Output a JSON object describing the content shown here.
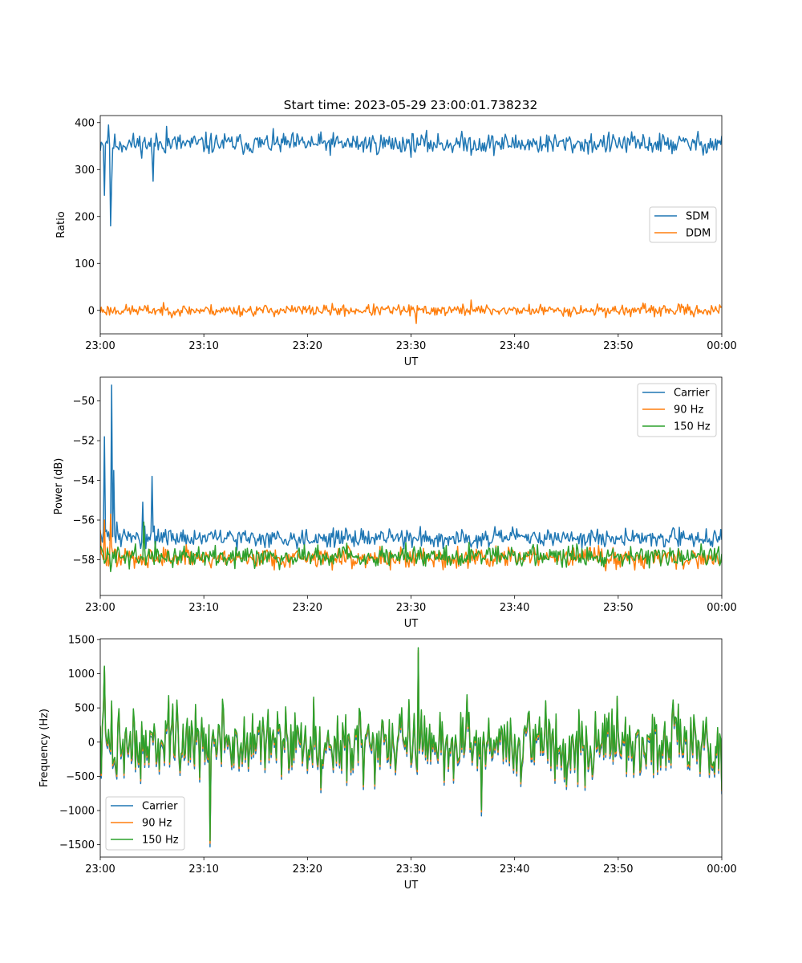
{
  "figure": {
    "title": "Start time: 2023-05-29 23:00:01.738232"
  },
  "colors": {
    "c0": "#1f77b4",
    "c1": "#ff7f0e",
    "c2": "#2ca02c"
  },
  "chart_data": [
    {
      "type": "line",
      "xlabel": "UT",
      "ylabel": "Ratio",
      "xlim": [
        0,
        60
      ],
      "ylim": [
        -50,
        415
      ],
      "xticks": [
        0,
        10,
        20,
        30,
        40,
        50,
        60
      ],
      "xticklabels": [
        "23:00",
        "23:10",
        "23:20",
        "23:30",
        "23:40",
        "23:50",
        "00:00"
      ],
      "yticks": [
        0,
        100,
        200,
        300,
        400
      ],
      "yticklabels": [
        "0",
        "100",
        "200",
        "300",
        "400"
      ],
      "legend_position": "center-right",
      "series": [
        {
          "name": "SDM",
          "color": "#1f77b4",
          "profile": {
            "base": 355,
            "noise": 15,
            "seed": 11
          },
          "anchors": [
            [
              0,
              340
            ],
            [
              0.15,
              355
            ],
            [
              0.4,
              245
            ],
            [
              0.55,
              360
            ],
            [
              0.8,
              395
            ],
            [
              1.0,
              180
            ],
            [
              1.1,
              270
            ],
            [
              1.3,
              345
            ],
            [
              5.0,
              330
            ],
            [
              5.1,
              275
            ],
            [
              5.3,
              350
            ],
            [
              6.4,
              392
            ],
            [
              60,
              372
            ]
          ]
        },
        {
          "name": "DDM",
          "color": "#ff7f0e",
          "profile": {
            "base": 0,
            "noise": 8,
            "seed": 23
          },
          "anchors": [
            [
              0,
              -5
            ],
            [
              30.5,
              -28
            ],
            [
              35.8,
              22
            ],
            [
              60,
              8
            ]
          ]
        }
      ]
    },
    {
      "type": "line",
      "xlabel": "UT",
      "ylabel": "Power (dB)",
      "xlim": [
        0,
        60
      ],
      "ylim": [
        -59.8,
        -48.8
      ],
      "xticks": [
        0,
        10,
        20,
        30,
        40,
        50,
        60
      ],
      "xticklabels": [
        "23:00",
        "23:10",
        "23:20",
        "23:30",
        "23:40",
        "23:50",
        "00:00"
      ],
      "yticks": [
        -58,
        -56,
        -54,
        -52,
        -50
      ],
      "yticklabels": [
        "−58",
        "−56",
        "−54",
        "−52",
        "−50"
      ],
      "legend_position": "top-right",
      "series": [
        {
          "name": "Carrier",
          "color": "#1f77b4",
          "profile": {
            "base": -56.9,
            "noise": 0.3,
            "seed": 31
          },
          "anchors": [
            [
              0,
              -56.6
            ],
            [
              0.4,
              -51.8
            ],
            [
              0.6,
              -56.5
            ],
            [
              1.1,
              -49.2
            ],
            [
              1.3,
              -53.5
            ],
            [
              1.6,
              -56.1
            ],
            [
              4.1,
              -55.1
            ],
            [
              4.3,
              -56.3
            ],
            [
              5.0,
              -53.8
            ],
            [
              5.2,
              -56.3
            ],
            [
              8,
              -56.5
            ],
            [
              15,
              -57.3
            ],
            [
              20,
              -57.0
            ],
            [
              30,
              -56.8
            ],
            [
              40,
              -56.8
            ],
            [
              50,
              -56.9
            ],
            [
              60,
              -57.0
            ]
          ]
        },
        {
          "name": "90 Hz",
          "color": "#ff7f0e",
          "profile": {
            "base": -57.9,
            "noise": 0.35,
            "seed": 47
          },
          "anchors": [
            [
              0,
              -56.5
            ],
            [
              0.4,
              -56.0
            ],
            [
              1.0,
              -55.7
            ],
            [
              1.5,
              -57.5
            ],
            [
              15,
              -58.1
            ],
            [
              25,
              -58.0
            ],
            [
              40,
              -57.6
            ],
            [
              60,
              -58.0
            ]
          ]
        },
        {
          "name": "150 Hz",
          "color": "#2ca02c",
          "profile": {
            "base": -57.8,
            "noise": 0.35,
            "seed": 59
          },
          "anchors": [
            [
              0,
              -57.3
            ],
            [
              1.0,
              -58.6
            ],
            [
              4.2,
              -56.1
            ],
            [
              5.0,
              -57.6
            ],
            [
              15,
              -58.2
            ],
            [
              25,
              -58.0
            ],
            [
              30,
              -58.1
            ],
            [
              40,
              -57.6
            ],
            [
              60,
              -57.7
            ]
          ]
        }
      ]
    },
    {
      "type": "line",
      "xlabel": "UT",
      "ylabel": "Frequency (Hz)",
      "xlim": [
        0,
        60
      ],
      "ylim": [
        -1680,
        1510
      ],
      "xticks": [
        0,
        10,
        20,
        30,
        40,
        50,
        60
      ],
      "xticklabels": [
        "23:00",
        "23:10",
        "23:20",
        "23:30",
        "23:40",
        "23:50",
        "00:00"
      ],
      "yticks": [
        -1500,
        -1000,
        -500,
        0,
        500,
        1000,
        1500
      ],
      "yticklabels": [
        "−1500",
        "−1000",
        "−500",
        "0",
        "500",
        "1000",
        "1500"
      ],
      "legend_position": "bottom-left",
      "series": [
        {
          "name": "Carrier",
          "color": "#1f77b4",
          "profile": {
            "base": 0,
            "noise": 350,
            "seed": 73,
            "offset": -60
          },
          "anchors": [
            [
              0,
              200
            ],
            [
              0.4,
              1100
            ],
            [
              10.6,
              -1530
            ],
            [
              30.7,
              1300
            ],
            [
              36.8,
              -1080
            ],
            [
              60,
              -760
            ]
          ]
        },
        {
          "name": "90 Hz",
          "color": "#ff7f0e",
          "profile": {
            "base": 0,
            "noise": 350,
            "seed": 73,
            "offset": -20
          },
          "anchors": [
            [
              0,
              220
            ],
            [
              0.4,
              1100
            ],
            [
              10.6,
              -1480
            ],
            [
              30.7,
              1340
            ],
            [
              36.8,
              -1020
            ],
            [
              60,
              -720
            ]
          ]
        },
        {
          "name": "150 Hz",
          "color": "#2ca02c",
          "profile": {
            "base": 0,
            "noise": 350,
            "seed": 73,
            "offset": 10
          },
          "anchors": [
            [
              0,
              240
            ],
            [
              0.4,
              1110
            ],
            [
              10.6,
              -1440
            ],
            [
              30.7,
              1380
            ],
            [
              36.8,
              -990
            ],
            [
              60,
              -700
            ]
          ]
        }
      ]
    }
  ]
}
